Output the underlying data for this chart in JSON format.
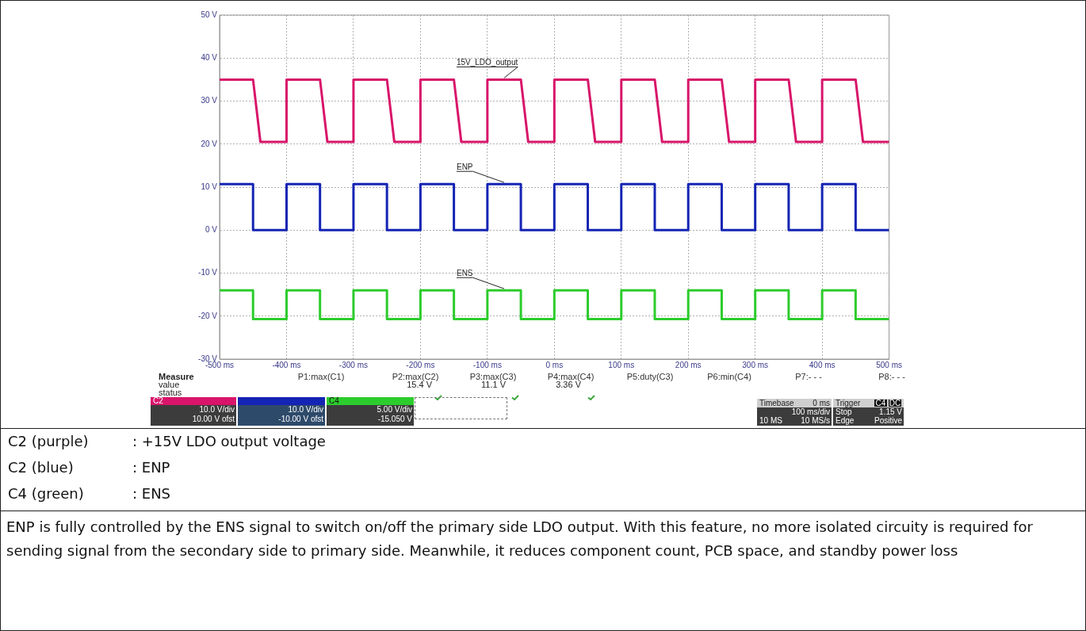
{
  "chart_data": {
    "type": "line",
    "xlim": [
      -500,
      500
    ],
    "ylim": [
      -30,
      50
    ],
    "xticks": [
      {
        "value": -500,
        "label": "-500 ms"
      },
      {
        "value": -400,
        "label": "-400 ms"
      },
      {
        "value": -300,
        "label": "-300 ms"
      },
      {
        "value": -200,
        "label": "-200 ms"
      },
      {
        "value": -100,
        "label": "-100 ms"
      },
      {
        "value": 0,
        "label": "0 ms"
      },
      {
        "value": 100,
        "label": "100 ms"
      },
      {
        "value": 200,
        "label": "200 ms"
      },
      {
        "value": 300,
        "label": "300 ms"
      },
      {
        "value": 400,
        "label": "400 ms"
      },
      {
        "value": 500,
        "label": "500 ms"
      }
    ],
    "yticks": [
      {
        "value": -30,
        "label": "-30 V"
      },
      {
        "value": -20,
        "label": "-20 V"
      },
      {
        "value": -10,
        "label": "-10 V"
      },
      {
        "value": 0,
        "label": "0 V"
      },
      {
        "value": 10,
        "label": "10 V"
      },
      {
        "value": 20,
        "label": "20 V"
      },
      {
        "value": 30,
        "label": "30 V"
      },
      {
        "value": 40,
        "label": "40 V"
      },
      {
        "value": 50,
        "label": "50 V"
      }
    ],
    "grid": true,
    "legend": false,
    "series": [
      {
        "name": "15V_LDO_output",
        "color": "#d8156a",
        "x": [
          -500,
          -450,
          -439,
          -400,
          -400,
          -350,
          -339,
          -300,
          -300,
          -250,
          -239,
          -200,
          -200,
          -150,
          -139,
          -100,
          -100,
          -50,
          -39,
          0,
          0,
          50,
          61,
          100,
          100,
          150,
          161,
          200,
          200,
          250,
          261,
          300,
          300,
          350,
          361,
          400,
          400,
          450,
          461,
          500
        ],
        "values": [
          35,
          35,
          20.5,
          20.5,
          35,
          35,
          20.5,
          20.5,
          35,
          35,
          20.5,
          20.5,
          35,
          35,
          20.5,
          20.5,
          35,
          35,
          20.5,
          20.5,
          35,
          35,
          20.5,
          20.5,
          35,
          35,
          20.5,
          20.5,
          35,
          35,
          20.5,
          20.5,
          35,
          35,
          20.5,
          20.5,
          35,
          35,
          20.5,
          20.5
        ]
      },
      {
        "name": "ENP",
        "color": "#1424b4",
        "x": [
          -500,
          -450,
          -450,
          -400,
          -400,
          -350,
          -350,
          -300,
          -300,
          -250,
          -250,
          -200,
          -200,
          -150,
          -150,
          -100,
          -100,
          -50,
          -50,
          0,
          0,
          50,
          50,
          100,
          100,
          150,
          150,
          200,
          200,
          250,
          250,
          300,
          300,
          350,
          350,
          400,
          400,
          450,
          450,
          500
        ],
        "values": [
          10.7,
          10.7,
          0,
          0,
          10.7,
          10.7,
          0,
          0,
          10.7,
          10.7,
          0,
          0,
          10.7,
          10.7,
          0,
          0,
          10.7,
          10.7,
          0,
          0,
          10.7,
          10.7,
          0,
          0,
          10.7,
          10.7,
          0,
          0,
          10.7,
          10.7,
          0,
          0,
          10.7,
          10.7,
          0,
          0,
          10.7,
          10.7,
          0,
          0
        ]
      },
      {
        "name": "ENS",
        "color": "#2ccc2c",
        "x": [
          -500,
          -450,
          -450,
          -400,
          -400,
          -350,
          -350,
          -300,
          -300,
          -250,
          -250,
          -200,
          -200,
          -150,
          -150,
          -100,
          -100,
          -50,
          -50,
          0,
          0,
          50,
          50,
          100,
          100,
          150,
          150,
          200,
          200,
          250,
          250,
          300,
          300,
          350,
          350,
          400,
          400,
          450,
          450,
          500
        ],
        "values": [
          -14,
          -14,
          -20.7,
          -20.7,
          -14,
          -14,
          -20.7,
          -20.7,
          -14,
          -14,
          -20.7,
          -20.7,
          -14,
          -14,
          -20.7,
          -20.7,
          -14,
          -14,
          -20.7,
          -20.7,
          -14,
          -14,
          -20.7,
          -20.7,
          -14,
          -14,
          -20.7,
          -20.7,
          -14,
          -14,
          -20.7,
          -20.7,
          -14,
          -14,
          -20.7,
          -20.7,
          -14,
          -14,
          -20.7,
          -20.7
        ]
      }
    ],
    "annotations": [
      "Measure",
      "P1:max(C1)",
      "P2:max(C2)",
      "P3:max(C3)",
      "P4:max(C4)",
      "P5:duty(C3)",
      "P6:min(C4)",
      "P7:- - -",
      "P8:- - -",
      "value",
      "15.4 V",
      "11.1 V",
      "3.36 V",
      "status",
      "C2",
      "10.0 V/div",
      "10.00 V ofst",
      "10.0 V/div",
      "-10.00 V ofst",
      "C4",
      "5.00 V/div",
      "-15.050 V",
      "Timebase",
      "0 ms",
      "Trigger",
      "C4",
      "DC",
      "100 ms/div",
      "Stop",
      "1.15 V",
      "10 MS",
      "10 MS/s",
      "Edge",
      "Positive",
      "C2 (purple)",
      ": +15V LDO output voltage",
      "C2 (blue)",
      ": ENP",
      "C4 (green)",
      ": ENS",
      "ENP is fully controlled by the ENS signal to switch on/off the primary side LDO output. With this feature, no more isolated circuity is required for sending signal from the secondary side to primary side. Meanwhile, it reduces component count, PCB space, and standby power loss"
    ]
  }
}
